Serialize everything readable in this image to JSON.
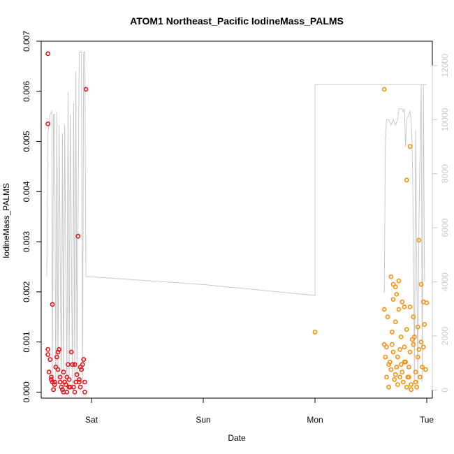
{
  "chart_data": {
    "type": "scatter",
    "title": "ATOM1 Northeast_Pacific IodineMass_PALMS",
    "xlabel": "Date",
    "ylabel": "IodineMass_PALMS",
    "xlim": [
      -0.45,
      3.05
    ],
    "ylim": [
      -0.00012,
      0.007
    ],
    "y2lim": [
      -300,
      12900
    ],
    "x_ticks": [
      0,
      1,
      2,
      3
    ],
    "x_tick_labels": [
      "Sat",
      "Sun",
      "Mon",
      "Tue"
    ],
    "y_ticks": [
      0.0,
      0.001,
      0.002,
      0.003,
      0.004,
      0.005,
      0.006,
      0.007
    ],
    "y_tick_labels": [
      "0.000",
      "0.001",
      "0.002",
      "0.003",
      "0.004",
      "0.005",
      "0.006",
      "0.007"
    ],
    "y2_ticks": [
      0,
      2000,
      4000,
      6000,
      8000,
      10000,
      12000
    ],
    "y2_tick_labels": [
      "0",
      "2000",
      "4000",
      "6000",
      "8000",
      "10000",
      "12000"
    ],
    "colors": {
      "series_red": "#e8141c",
      "series_orange": "#f5900a",
      "line": "#c8c8c8"
    },
    "series": [
      {
        "color": "#e8141c",
        "points": [
          [
            -0.39,
            0.00675
          ],
          [
            -0.39,
            0.00535
          ],
          [
            -0.35,
            0.00175
          ],
          [
            -0.39,
            0.00085
          ],
          [
            -0.39,
            0.00075
          ],
          [
            -0.37,
            0.00065
          ],
          [
            -0.36,
            0.0003
          ],
          [
            -0.36,
            0.00025
          ],
          [
            -0.35,
            0.0002
          ],
          [
            -0.33,
            0.00015
          ],
          [
            -0.32,
            0.0005
          ],
          [
            -0.31,
            0.0007
          ],
          [
            -0.3,
            0.0008
          ],
          [
            -0.29,
            0.00085
          ],
          [
            -0.3,
            0.00045
          ],
          [
            -0.28,
            0.0003
          ],
          [
            -0.27,
            0.0001
          ],
          [
            -0.26,
            5e-05
          ],
          [
            -0.25,
            0.0
          ],
          [
            -0.24,
            0.0002
          ],
          [
            -0.23,
            0.00015
          ],
          [
            -0.22,
            0.0003
          ],
          [
            -0.21,
            0.00055
          ],
          [
            -0.2,
            0.00025
          ],
          [
            -0.19,
            0.0001
          ],
          [
            -0.18,
            0.0008
          ],
          [
            -0.17,
            0.00055
          ],
          [
            -0.16,
            0.0001
          ],
          [
            -0.15,
            0.0
          ],
          [
            -0.14,
            0.0002
          ],
          [
            -0.13,
            0.00035
          ],
          [
            -0.12,
            0.00311
          ],
          [
            -0.11,
            0.0002
          ],
          [
            -0.1,
            0.0001
          ],
          [
            -0.09,
            0.00045
          ],
          [
            -0.08,
            0.00055
          ],
          [
            -0.07,
            0.00065
          ],
          [
            -0.06,
            0.0
          ],
          [
            -0.05,
            0.00604
          ],
          [
            -0.06,
            0.0002
          ],
          [
            -0.1,
            0.0005
          ],
          [
            -0.2,
            0.0001
          ],
          [
            -0.25,
            0.0004
          ],
          [
            -0.38,
            0.0004
          ],
          [
            -0.34,
            5e-05
          ],
          [
            -0.22,
            0.0
          ],
          [
            -0.15,
            0.00055
          ],
          [
            -0.11,
            0.00025
          ],
          [
            -0.33,
            0.0002
          ],
          [
            -0.28,
            0.0002
          ]
        ]
      },
      {
        "color": "#f5900a",
        "points": [
          [
            2.0,
            0.0012
          ],
          [
            2.62,
            0.00604
          ],
          [
            2.62,
            0.00165
          ],
          [
            2.85,
            0.0049
          ],
          [
            2.82,
            0.00423
          ],
          [
            2.93,
            0.00303
          ],
          [
            2.68,
            0.0023
          ],
          [
            2.75,
            0.00222
          ],
          [
            2.95,
            0.00215
          ],
          [
            2.7,
            0.00215
          ],
          [
            2.72,
            0.0021
          ],
          [
            2.73,
            0.00195
          ],
          [
            2.78,
            0.0018
          ],
          [
            2.97,
            0.0018
          ],
          [
            3.0,
            0.00178
          ],
          [
            2.8,
            0.0017
          ],
          [
            2.85,
            0.0017
          ],
          [
            2.7,
            0.00185
          ],
          [
            2.65,
            0.0015
          ],
          [
            2.75,
            0.00165
          ],
          [
            2.88,
            0.0015
          ],
          [
            2.92,
            0.0013
          ],
          [
            2.98,
            0.00135
          ],
          [
            2.72,
            0.0014
          ],
          [
            2.82,
            0.00125
          ],
          [
            2.69,
            0.0012
          ],
          [
            2.77,
            0.0011
          ],
          [
            2.87,
            0.00105
          ],
          [
            2.95,
            0.001
          ],
          [
            2.62,
            0.00095
          ],
          [
            2.64,
            0.0009
          ],
          [
            2.7,
            0.0008
          ],
          [
            2.74,
            0.0007
          ],
          [
            2.8,
            0.0006
          ],
          [
            2.84,
            0.0005
          ],
          [
            2.9,
            0.0004
          ],
          [
            2.96,
            0.0005
          ],
          [
            2.66,
            0.00055
          ],
          [
            2.68,
            0.00045
          ],
          [
            2.72,
            0.00035
          ],
          [
            2.76,
            0.0003
          ],
          [
            2.79,
            0.0002
          ],
          [
            2.82,
            0.0001
          ],
          [
            2.86,
            5e-05
          ],
          [
            2.9,
            0.0002
          ],
          [
            2.94,
            0.0003
          ],
          [
            2.99,
            0.00045
          ],
          [
            2.63,
            0.0007
          ],
          [
            2.67,
            0.0006
          ],
          [
            2.71,
            0.00025
          ],
          [
            2.74,
            0.00015
          ],
          [
            2.78,
            0.0004
          ],
          [
            2.81,
            0.0006
          ],
          [
            2.85,
            0.0008
          ],
          [
            2.88,
            0.00095
          ],
          [
            2.92,
            0.0007
          ],
          [
            2.97,
            0.0009
          ],
          [
            2.66,
            0.0001
          ],
          [
            2.69,
            0.00095
          ],
          [
            2.73,
            0.0005
          ],
          [
            2.77,
            0.00055
          ],
          [
            2.83,
            0.0003
          ],
          [
            2.86,
            0.00015
          ],
          [
            2.91,
            0.0001
          ],
          [
            2.64,
            0.0003
          ],
          [
            2.89,
            0.0011
          ],
          [
            2.93,
            0.00085
          ],
          [
            2.76,
            0.00085
          ],
          [
            2.8,
            0.0009
          ],
          [
            2.84,
            0.0003
          ]
        ]
      }
    ],
    "line_series": {
      "axis": "right",
      "points": [
        [
          -0.4,
          4200
        ],
        [
          -0.39,
          9500
        ],
        [
          -0.37,
          10200
        ],
        [
          -0.355,
          10300
        ],
        [
          -0.35,
          0
        ],
        [
          -0.34,
          10200
        ],
        [
          -0.33,
          10200
        ],
        [
          -0.32,
          0
        ],
        [
          -0.31,
          10300
        ],
        [
          -0.3,
          200
        ],
        [
          -0.29,
          9800
        ],
        [
          -0.27,
          0
        ],
        [
          -0.26,
          9500
        ],
        [
          -0.25,
          200
        ],
        [
          -0.24,
          9800
        ],
        [
          -0.22,
          0
        ],
        [
          -0.21,
          11000
        ],
        [
          -0.2,
          100
        ],
        [
          -0.19,
          10200
        ],
        [
          -0.17,
          0
        ],
        [
          -0.16,
          10600
        ],
        [
          -0.15,
          100
        ],
        [
          -0.14,
          11800
        ],
        [
          -0.13,
          300
        ],
        [
          -0.11,
          12500
        ],
        [
          -0.09,
          12500
        ],
        [
          -0.08,
          100
        ],
        [
          -0.07,
          12500
        ],
        [
          -0.06,
          12500
        ],
        [
          -0.05,
          4200
        ],
        [
          1.0,
          3900
        ],
        [
          2.0,
          3500
        ],
        [
          2.0,
          9300
        ],
        [
          2.0,
          11300
        ],
        [
          2.6,
          11300
        ],
        [
          2.95,
          11300
        ],
        [
          3.0,
          11300
        ],
        [
          null,
          null
        ],
        [
          2.62,
          3600
        ],
        [
          2.63,
          9300
        ],
        [
          2.64,
          10000
        ],
        [
          2.66,
          10000
        ],
        [
          2.68,
          9800
        ],
        [
          2.7,
          10000
        ],
        [
          2.72,
          9800
        ],
        [
          2.74,
          10000
        ],
        [
          2.75,
          10400
        ],
        [
          2.78,
          10400
        ],
        [
          2.79,
          10300
        ],
        [
          2.8,
          10400
        ],
        [
          2.81,
          9000
        ],
        [
          2.82,
          10000
        ],
        [
          2.85,
          10300
        ],
        [
          2.86,
          10000
        ],
        [
          2.87,
          9000
        ],
        [
          2.88,
          5800
        ],
        [
          2.89,
          200
        ],
        [
          2.9,
          9600
        ],
        [
          2.92,
          200
        ],
        [
          2.93,
          6200
        ],
        [
          2.95,
          11300
        ],
        [
          2.96,
          300
        ],
        [
          2.97,
          11300
        ],
        [
          2.98,
          4000
        ]
      ]
    }
  }
}
